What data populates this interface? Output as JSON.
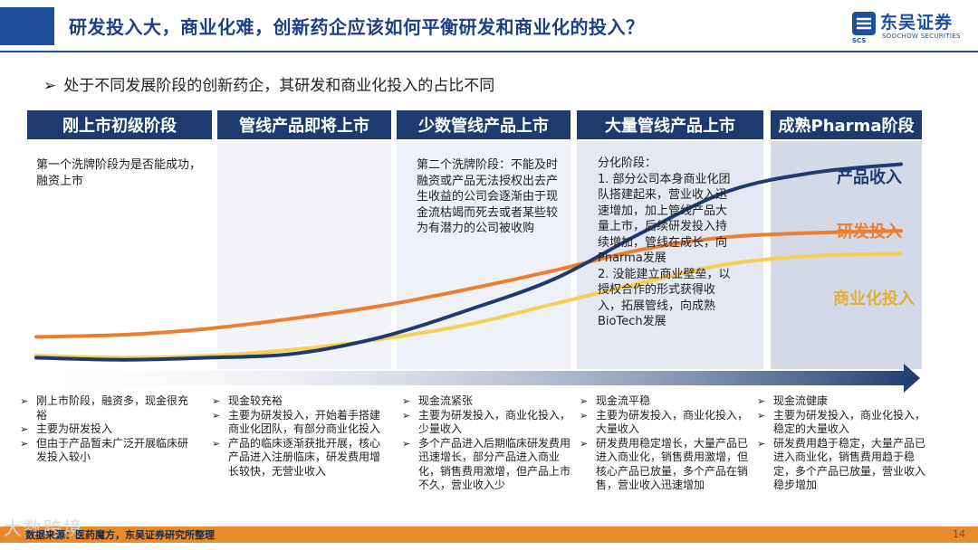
{
  "header": {
    "title": "研发投入大，商业化难，创新药企应该如何平衡研发和商业化的投入？",
    "logo_cn": "东吴证券",
    "logo_en": "SOOCHOW SECURITIES",
    "logo_abbr": "SCS",
    "brand_color": "#1f4e9c"
  },
  "subtitle": "处于不同发展阶段的创新药企，其研发和商业化投入的占比不同",
  "stages": [
    {
      "title": "刚上市初级阶段",
      "note": "第一个洗牌阶段为是否能成功，融资上市",
      "bullets": [
        "刚上市阶段，融资多，现金很充裕",
        "主要为研发投入",
        "但由于产品暂未广泛开展临床研发投入较小"
      ]
    },
    {
      "title": "管线产品即将上市",
      "note": "",
      "bullets": [
        "现金较充裕",
        "主要为研发投入，开始着手搭建商业化团队，有部分商业化投入",
        "产品的临床逐渐获批开展，核心产品进入注册临床，研发费用增长较快，无营业收入"
      ]
    },
    {
      "title": "少数管线产品上市",
      "note": "第二个洗牌阶段：不能及时融资或产品无法授权出去产生收益的公司会逐渐由于现金流枯竭而死去或者某些较为有潜力的公司被收购",
      "bullets": [
        "现金流紧张",
        "主要为研发投入，商业化投入，少量收入",
        "多个产品进入后期临床研发费用迅速增长，部分产品进入商业化，销售费用激增，但产品上市不久，营业收入少"
      ]
    },
    {
      "title": "大量管线产品上市",
      "note": "分化阶段：\n1. 部分公司本身商业化团队搭建起来，营业收入迅速增加，加上管线产品大量上市，后续研发投入持续增加，管线在成长，向Pharma发展\n2. 没能建立商业壁垒，以授权合作的形式获得收入，拓展管线，向成熟BioTech发展",
      "bullets": [
        "现金流平稳",
        "主要为研发投入，商业化投入，大量收入",
        "研发费用稳定增长，大量产品已进入商业化，销售费用激增，但核心产品已放量，多个产品在销售，营业收入迅速增加"
      ]
    },
    {
      "title": "成熟Pharma阶段",
      "note": "",
      "bullets": [
        "现金流健康",
        "主要为研发投入，商业化投入，稳定的大量收入",
        "研发费用趋于稳定，大量产品已进入商业化，销售费用趋于稳定，多个产品已放量，营业收入稳步增加"
      ]
    }
  ],
  "chart_data": {
    "type": "line",
    "title": "",
    "xlabel": "",
    "ylabel": "",
    "x": [
      0,
      1,
      2,
      3,
      4,
      5,
      6,
      7,
      8,
      9,
      10
    ],
    "ylim": [
      0,
      100
    ],
    "series": [
      {
        "name": "产品收入",
        "color": "#1e3a6e",
        "values": [
          2,
          1,
          2,
          4,
          12,
          25,
          40,
          62,
          82,
          91,
          95
        ]
      },
      {
        "name": "研发投入",
        "color": "#ed7d31",
        "values": [
          12,
          13,
          16,
          21,
          27,
          35,
          44,
          54,
          60,
          62,
          63
        ]
      },
      {
        "name": "商业化投入",
        "color": "#f7cf55",
        "values": [
          3,
          2,
          3,
          6,
          11,
          18,
          28,
          38,
          47,
          51,
          52
        ]
      }
    ]
  },
  "footer": {
    "source": "数据来源：医药魔方，东吴证券研究所整理",
    "watermark": "大数跨境",
    "page": "14",
    "accent": "#e98a2d"
  }
}
